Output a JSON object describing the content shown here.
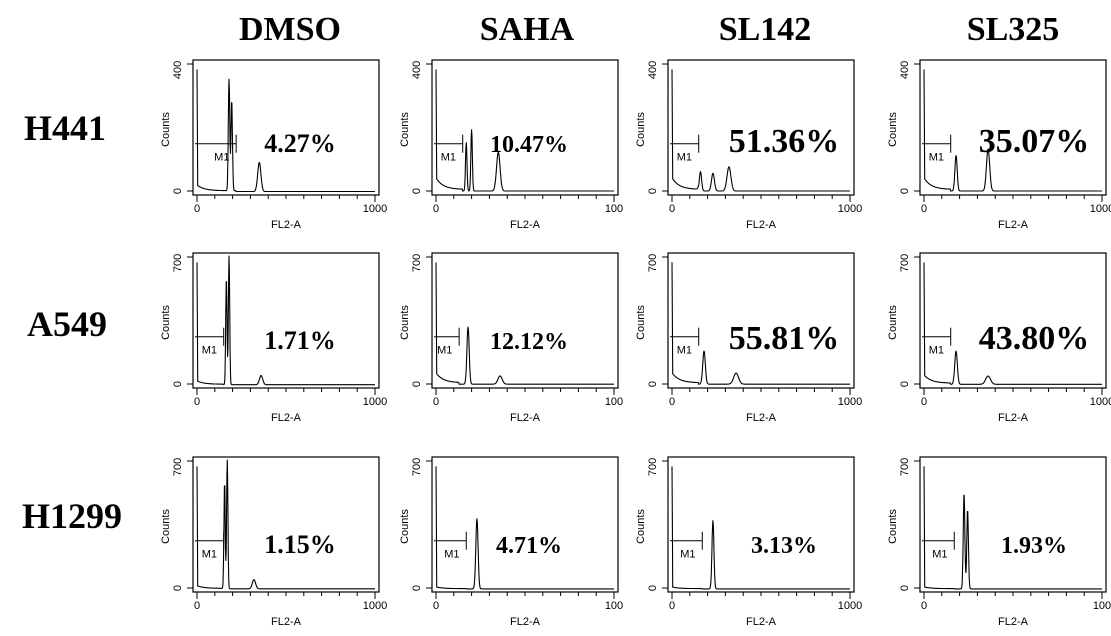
{
  "column_titles": [
    "DMSO",
    "SAHA",
    "SL142",
    "SL325"
  ],
  "row_labels": [
    "H441",
    "A549",
    "H1299"
  ],
  "panel_axes": {
    "x_label": "FL2-A",
    "y_label": "Counts",
    "marker_label": "M1",
    "y_axis_zero": "0"
  },
  "chart_data": {
    "type": "histogram-grid",
    "x_range": [
      0,
      1000
    ],
    "rows": [
      {
        "cell_line": "H441",
        "ymax": 400,
        "ymax_label": "400",
        "panels": [
          {
            "treatment": "DMSO",
            "subg1_percent": "4.27%",
            "x_max_label": "1000",
            "peaks": [
              {
                "x": 180,
                "height": 345,
                "width": 9
              },
              {
                "x": 195,
                "height": 280,
                "width": 9
              },
              {
                "x": 350,
                "height": 90,
                "width": 20
              }
            ],
            "baseline": 10,
            "debris_start": 220
          },
          {
            "treatment": "SAHA",
            "subg1_percent": "10.47%",
            "x_max_label": "100",
            "peaks": [
              {
                "x": 170,
                "height": 150,
                "width": 9
              },
              {
                "x": 200,
                "height": 190,
                "width": 9
              },
              {
                "x": 350,
                "height": 120,
                "width": 22
              }
            ],
            "baseline": 20,
            "debris_start": 150
          },
          {
            "treatment": "SL142",
            "subg1_percent": "51.36%",
            "x_max_label": "1000",
            "peaks": [
              {
                "x": 160,
                "height": 60,
                "width": 14
              },
              {
                "x": 230,
                "height": 55,
                "width": 18
              },
              {
                "x": 320,
                "height": 75,
                "width": 24
              }
            ],
            "baseline": 20,
            "debris_start": 150
          },
          {
            "treatment": "SL325",
            "subg1_percent": "35.07%",
            "x_max_label": "1000",
            "peaks": [
              {
                "x": 180,
                "height": 110,
                "width": 14
              },
              {
                "x": 360,
                "height": 130,
                "width": 20
              }
            ],
            "baseline": 20,
            "debris_start": 150
          }
        ]
      },
      {
        "cell_line": "A549",
        "ymax": 700,
        "ymax_label": "700",
        "panels": [
          {
            "treatment": "DMSO",
            "subg1_percent": "1.71%",
            "x_max_label": "1000",
            "peaks": [
              {
                "x": 180,
                "height": 700,
                "width": 8
              },
              {
                "x": 165,
                "height": 580,
                "width": 8
              },
              {
                "x": 360,
                "height": 50,
                "width": 20
              }
            ],
            "baseline": 10,
            "debris_start": 150
          },
          {
            "treatment": "SAHA",
            "subg1_percent": "12.12%",
            "x_max_label": "100",
            "peaks": [
              {
                "x": 180,
                "height": 310,
                "width": 14
              },
              {
                "x": 360,
                "height": 45,
                "width": 26
              }
            ],
            "baseline": 30,
            "debris_start": 130
          },
          {
            "treatment": "SL142",
            "subg1_percent": "55.81%",
            "x_max_label": "1000",
            "peaks": [
              {
                "x": 180,
                "height": 180,
                "width": 16
              },
              {
                "x": 360,
                "height": 60,
                "width": 30
              }
            ],
            "baseline": 30,
            "debris_start": 150
          },
          {
            "treatment": "SL325",
            "subg1_percent": "43.80%",
            "x_max_label": "1000",
            "peaks": [
              {
                "x": 180,
                "height": 180,
                "width": 16
              },
              {
                "x": 360,
                "height": 45,
                "width": 30
              }
            ],
            "baseline": 25,
            "debris_start": 150
          }
        ]
      },
      {
        "cell_line": "H1299",
        "ymax": 700,
        "ymax_label": "700",
        "panels": [
          {
            "treatment": "DMSO",
            "subg1_percent": "1.15%",
            "x_max_label": "1000",
            "peaks": [
              {
                "x": 170,
                "height": 700,
                "width": 8
              },
              {
                "x": 155,
                "height": 580,
                "width": 8
              },
              {
                "x": 320,
                "height": 50,
                "width": 20
              }
            ],
            "baseline": 8,
            "debris_start": 150
          },
          {
            "treatment": "SAHA",
            "subg1_percent": "4.71%",
            "x_max_label": "100",
            "peaks": [
              {
                "x": 230,
                "height": 380,
                "width": 14
              }
            ],
            "baseline": 5,
            "debris_start": 170
          },
          {
            "treatment": "SL142",
            "subg1_percent": "3.13%",
            "x_max_label": "1000",
            "peaks": [
              {
                "x": 230,
                "height": 370,
                "width": 12
              }
            ],
            "baseline": 5,
            "debris_start": 170
          },
          {
            "treatment": "SL325",
            "subg1_percent": "1.93%",
            "x_max_label": "100",
            "peaks": [
              {
                "x": 225,
                "height": 520,
                "width": 10
              },
              {
                "x": 245,
                "height": 430,
                "width": 10
              }
            ],
            "baseline": 5,
            "debris_start": 170
          }
        ]
      }
    ]
  }
}
